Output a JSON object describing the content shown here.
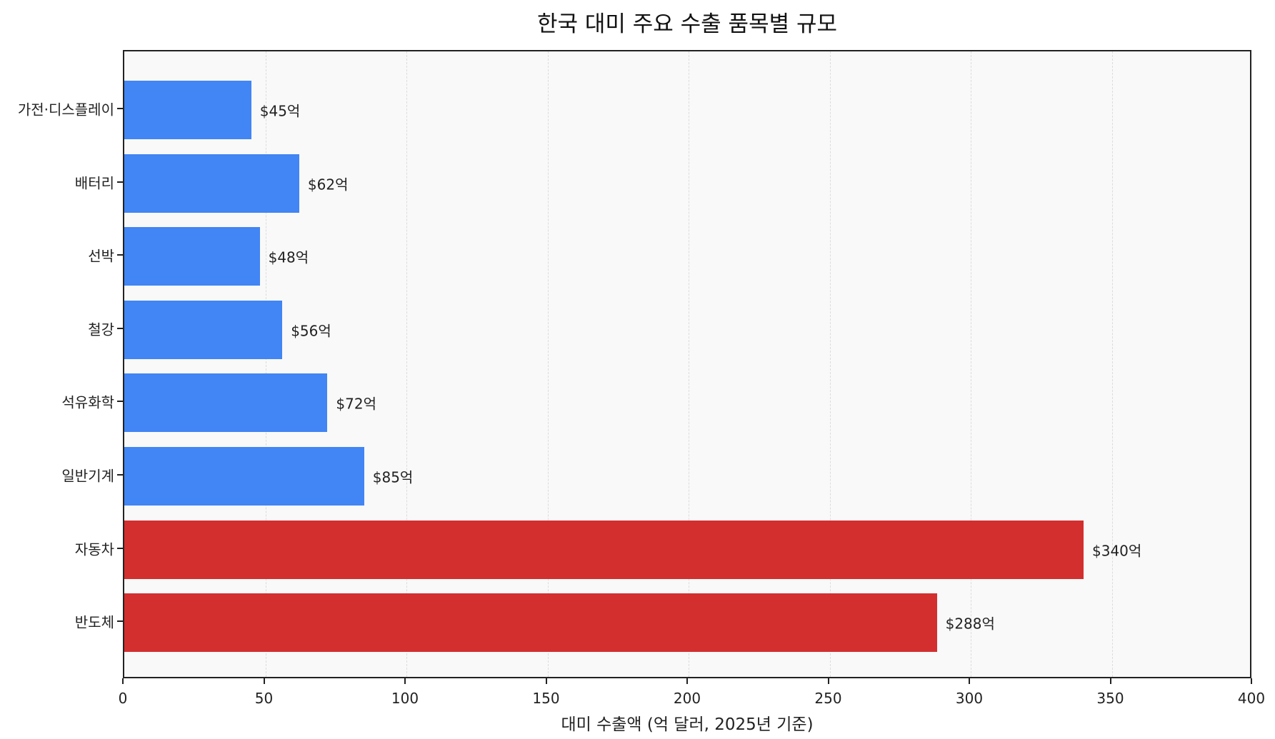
{
  "chart_data": {
    "type": "bar",
    "orientation": "horizontal",
    "title": "한국 대미 주요 수출 품목별 규모",
    "xlabel": "대미 수출액 (억 달러, 2025년 기준)",
    "ylabel": "",
    "xlim": [
      0,
      400
    ],
    "xticks": [
      0,
      50,
      100,
      150,
      200,
      250,
      300,
      350,
      400
    ],
    "grid": {
      "x": true,
      "y": false,
      "style": "dashed"
    },
    "categories": [
      "가전·디스플레이",
      "배터리",
      "선박",
      "철강",
      "석유화학",
      "일반기계",
      "자동차",
      "반도체"
    ],
    "values": [
      45,
      62,
      48,
      56,
      72,
      85,
      340,
      288
    ],
    "value_labels": [
      "$45억",
      "$62억",
      "$48억",
      "$56억",
      "$72억",
      "$85억",
      "$340억",
      "$288억"
    ],
    "colors": [
      "#4285f4",
      "#4285f4",
      "#4285f4",
      "#4285f4",
      "#4285f4",
      "#4285f4",
      "#d32f2f",
      "#d32f2f"
    ],
    "legend": null
  },
  "colors": {
    "primary_bar": "#4285f4",
    "highlight_bar": "#d32f2f",
    "plot_background": "#f9f9f9"
  }
}
